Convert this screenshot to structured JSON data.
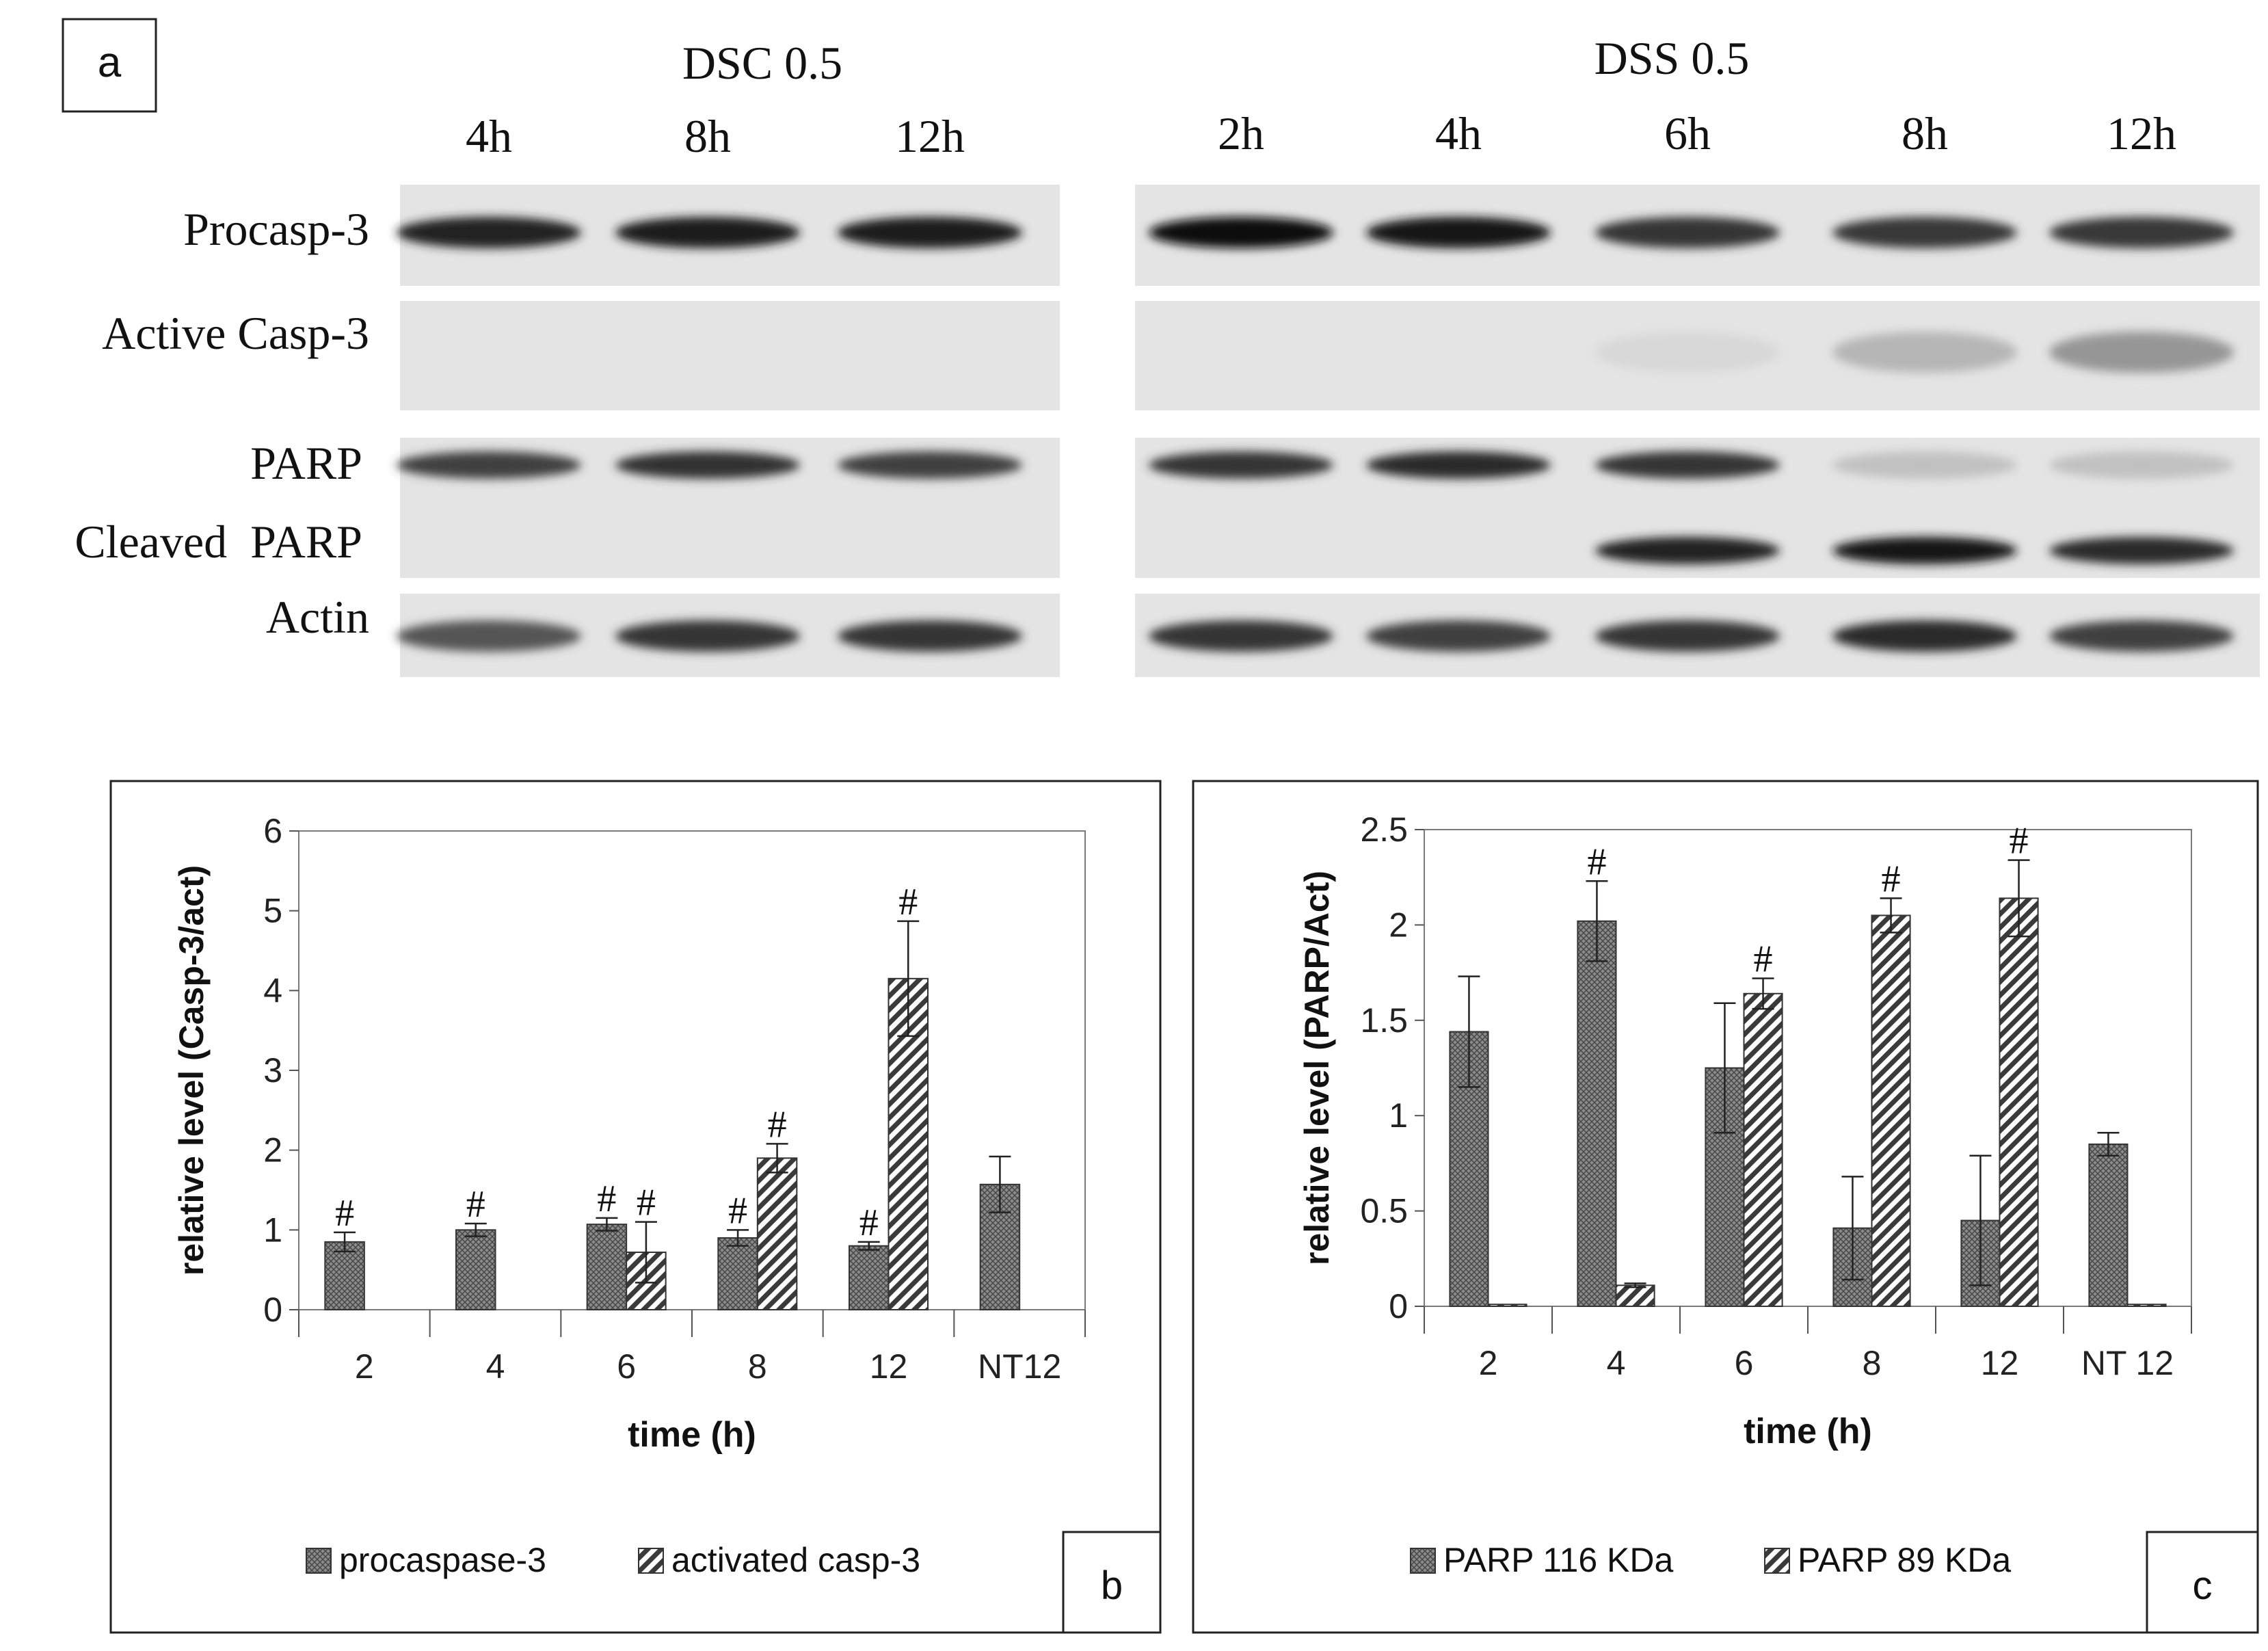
{
  "panel_a": {
    "label": "a",
    "dsc": {
      "title": "DSC 0.5",
      "times": [
        "4h",
        "8h",
        "12h"
      ]
    },
    "dss": {
      "title": "DSS 0.5",
      "times": [
        "2h",
        "4h",
        "6h",
        "8h",
        "12h"
      ]
    },
    "row_labels": {
      "procasp": "Procasp-3",
      "active": "Active Casp-3",
      "parp": "PARP",
      "cleaved": "Cleaved  PARP",
      "actin": "Actin"
    },
    "bands": {
      "dsc": {
        "procasp": [
          0.9,
          0.92,
          0.92
        ],
        "active": [
          0,
          0,
          0
        ],
        "parp": [
          0.75,
          0.82,
          0.75
        ],
        "cleaved": [
          0,
          0,
          0
        ],
        "actin": [
          0.65,
          0.8,
          0.8
        ]
      },
      "dss": {
        "procasp": [
          0.97,
          0.95,
          0.8,
          0.78,
          0.78
        ],
        "active": [
          0,
          0,
          0.04,
          0.2,
          0.35
        ],
        "parp": [
          0.8,
          0.85,
          0.8,
          0.15,
          0.15
        ],
        "cleaved": [
          0,
          0,
          0.9,
          0.95,
          0.85
        ],
        "actin": [
          0.8,
          0.75,
          0.8,
          0.85,
          0.75
        ]
      }
    }
  },
  "chart_data": [
    {
      "panel": "b",
      "type": "bar",
      "xlabel": "time (h)",
      "ylabel": "relative level (Casp-3/act)",
      "ylim": [
        0,
        6
      ],
      "yticks": [
        "0",
        "1",
        "2",
        "3",
        "4",
        "5",
        "6"
      ],
      "categories": [
        "2",
        "4",
        "6",
        "8",
        "12",
        "NT12"
      ],
      "legend_position": "bottom",
      "series": [
        {
          "name": "procaspase-3",
          "pattern": "dense",
          "values": [
            0.85,
            1.0,
            1.07,
            0.9,
            0.8,
            1.57
          ],
          "errors": [
            0.12,
            0.08,
            0.08,
            0.1,
            0.05,
            0.35
          ],
          "marks": [
            "#",
            "#",
            "#",
            "#",
            "#",
            ""
          ]
        },
        {
          "name": "activated casp-3",
          "pattern": "diagonal",
          "values": [
            null,
            null,
            0.72,
            1.9,
            4.15,
            null
          ],
          "errors": [
            null,
            null,
            0.38,
            0.18,
            0.72,
            null
          ],
          "marks": [
            "",
            "",
            "#",
            "#",
            "#",
            ""
          ]
        }
      ]
    },
    {
      "panel": "c",
      "type": "bar",
      "xlabel": "time (h)",
      "ylabel": "relative level (PARP/Act)",
      "ylim": [
        0,
        2.5
      ],
      "yticks": [
        "0",
        "0.5",
        "1",
        "1.5",
        "2",
        "2.5"
      ],
      "categories": [
        "2",
        "4",
        "6",
        "8",
        "12",
        "NT 12"
      ],
      "legend_position": "bottom",
      "series": [
        {
          "name": "PARP 116 KDa",
          "pattern": "dense",
          "values": [
            1.44,
            2.02,
            1.25,
            0.41,
            0.45,
            0.85
          ],
          "errors": [
            0.29,
            0.21,
            0.34,
            0.27,
            0.34,
            0.06
          ],
          "marks": [
            "",
            "#",
            "",
            "",
            "",
            ""
          ]
        },
        {
          "name": "PARP 89 KDa",
          "pattern": "diagonal",
          "values": [
            0.01,
            0.11,
            1.64,
            2.05,
            2.14,
            0.01
          ],
          "errors": [
            0,
            0.01,
            0.08,
            0.09,
            0.2,
            0
          ],
          "marks": [
            "",
            "",
            "#",
            "#",
            "#",
            ""
          ]
        }
      ]
    }
  ]
}
